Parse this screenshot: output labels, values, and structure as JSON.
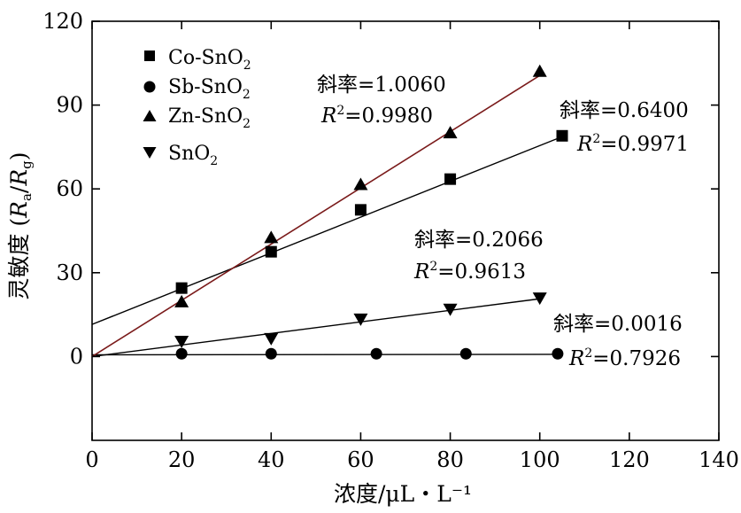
{
  "chart_data": {
    "type": "scatter",
    "title": "",
    "xlabel": "浓度/μL・L⁻¹",
    "ylabel_prefix": "灵敏度 (",
    "ylabel_Ra": "R",
    "ylabel_a": "a",
    "ylabel_slash": "/",
    "ylabel_Rg": "R",
    "ylabel_g": "g",
    "ylabel_suffix": ")",
    "xlim": [
      0,
      140
    ],
    "ylim": [
      -30,
      120
    ],
    "xticks": [
      "0",
      "20",
      "40",
      "60",
      "80",
      "100",
      "120",
      "140"
    ],
    "yticks": [
      "0",
      "30",
      "60",
      "90",
      "120"
    ],
    "legend_position": "top-left",
    "series": [
      {
        "name_main": "Co-SnO",
        "name_sub": "2",
        "marker": "square",
        "x": [
          20,
          40,
          60,
          80,
          105
        ],
        "y": [
          24.5,
          37.5,
          52.5,
          63.5,
          79
        ],
        "fit": {
          "intercept": 11.5,
          "slope": 0.64,
          "x_range": [
            0,
            105
          ]
        },
        "slope_label": "斜率=0.6400",
        "r2_prefix": "R",
        "r2_sup": "2",
        "r2_value": "=0.9971"
      },
      {
        "name_main": "Sb-SnO",
        "name_sub": "2",
        "marker": "circle",
        "x": [
          20,
          40,
          63.5,
          83.5,
          104
        ],
        "y": [
          1,
          1,
          1,
          1,
          1
        ],
        "fit": {
          "intercept": 0.6,
          "slope": 0.0016,
          "x_range": [
            0,
            104
          ]
        },
        "slope_label": "斜率=0.0016",
        "r2_prefix": "R",
        "r2_sup": "2",
        "r2_value": "=0.7926"
      },
      {
        "name_main": "Zn-SnO",
        "name_sub": "2",
        "marker": "triangle-up",
        "x": [
          20,
          40,
          60,
          80,
          100
        ],
        "y": [
          19.5,
          42.5,
          61.5,
          80,
          102
        ],
        "fit": {
          "intercept": 0,
          "slope": 1.006,
          "x_range": [
            0,
            100
          ]
        },
        "slope_label": "斜率=1.0060",
        "r2_prefix": "R",
        "r2_sup": "2",
        "r2_value": "=0.9980"
      },
      {
        "name_main": "SnO",
        "name_sub": "2",
        "marker": "triangle-down",
        "x": [
          20,
          40,
          60,
          80,
          100
        ],
        "y": [
          5.5,
          6.5,
          13.5,
          17,
          21
        ],
        "fit": {
          "intercept": 0,
          "slope": 0.2066,
          "x_range": [
            0,
            100
          ]
        },
        "slope_label": "斜率=0.2066",
        "r2_prefix": "R",
        "r2_sup": "2",
        "r2_value": "=0.9613"
      }
    ]
  }
}
